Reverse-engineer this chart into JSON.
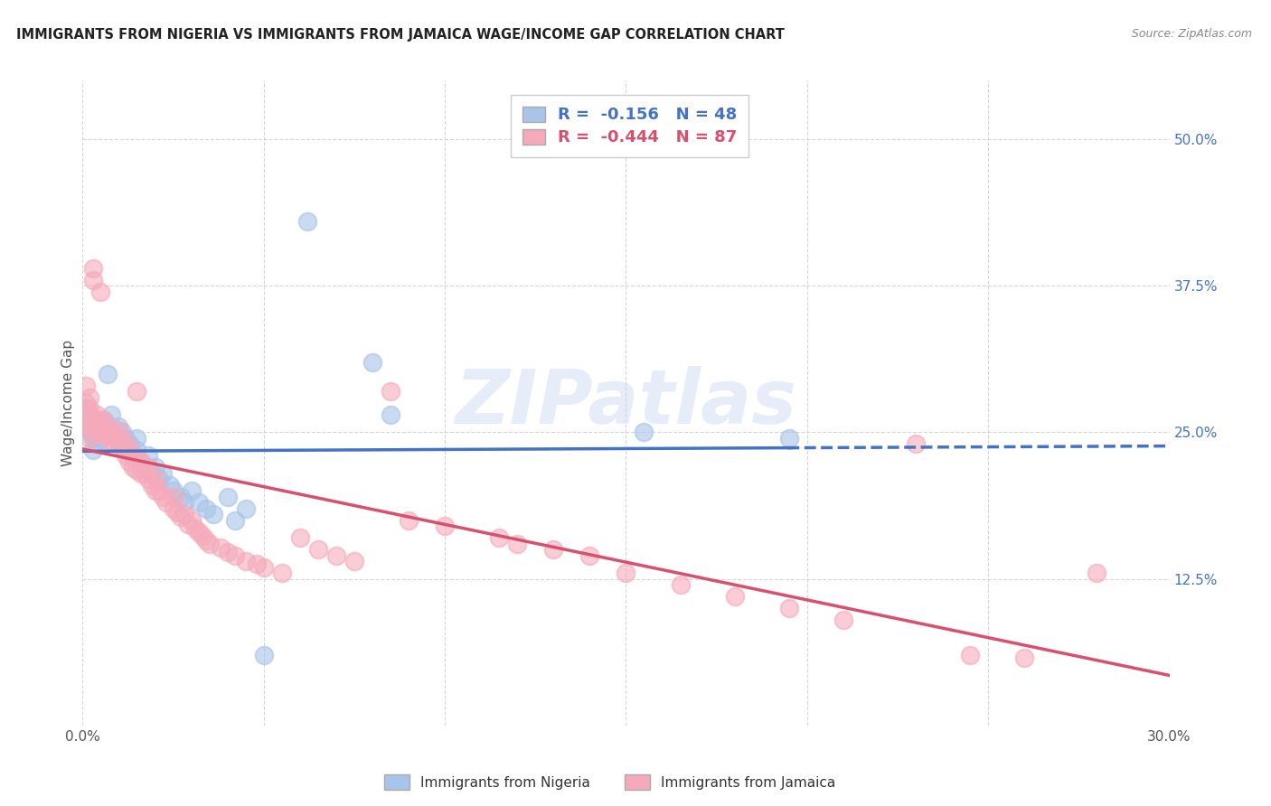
{
  "title": "IMMIGRANTS FROM NIGERIA VS IMMIGRANTS FROM JAMAICA WAGE/INCOME GAP CORRELATION CHART",
  "source": "Source: ZipAtlas.com",
  "ylabel": "Wage/Income Gap",
  "yticks": [
    "50.0%",
    "37.5%",
    "25.0%",
    "12.5%"
  ],
  "ytick_vals": [
    0.5,
    0.375,
    0.25,
    0.125
  ],
  "xmin": 0.0,
  "xmax": 0.3,
  "ymin": 0.0,
  "ymax": 0.55,
  "nigeria_R": -0.156,
  "nigeria_N": 48,
  "jamaica_R": -0.444,
  "jamaica_N": 87,
  "nigeria_color": "#a8c4e8",
  "jamaica_color": "#f5aabb",
  "nigeria_line_color": "#4472c4",
  "jamaica_line_color": "#d94f6e",
  "nigeria_scatter": [
    [
      0.001,
      0.27
    ],
    [
      0.001,
      0.255
    ],
    [
      0.002,
      0.265
    ],
    [
      0.002,
      0.25
    ],
    [
      0.003,
      0.26
    ],
    [
      0.003,
      0.245
    ],
    [
      0.003,
      0.235
    ],
    [
      0.004,
      0.25
    ],
    [
      0.004,
      0.24
    ],
    [
      0.005,
      0.255
    ],
    [
      0.005,
      0.245
    ],
    [
      0.006,
      0.26
    ],
    [
      0.006,
      0.25
    ],
    [
      0.007,
      0.3
    ],
    [
      0.008,
      0.265
    ],
    [
      0.008,
      0.25
    ],
    [
      0.01,
      0.255
    ],
    [
      0.01,
      0.24
    ],
    [
      0.011,
      0.25
    ],
    [
      0.012,
      0.245
    ],
    [
      0.012,
      0.235
    ],
    [
      0.013,
      0.24
    ],
    [
      0.014,
      0.23
    ],
    [
      0.015,
      0.245
    ],
    [
      0.015,
      0.235
    ],
    [
      0.016,
      0.225
    ],
    [
      0.018,
      0.23
    ],
    [
      0.019,
      0.215
    ],
    [
      0.02,
      0.22
    ],
    [
      0.021,
      0.21
    ],
    [
      0.022,
      0.215
    ],
    [
      0.024,
      0.205
    ],
    [
      0.025,
      0.2
    ],
    [
      0.027,
      0.195
    ],
    [
      0.028,
      0.19
    ],
    [
      0.03,
      0.2
    ],
    [
      0.032,
      0.19
    ],
    [
      0.034,
      0.185
    ],
    [
      0.036,
      0.18
    ],
    [
      0.04,
      0.195
    ],
    [
      0.042,
      0.175
    ],
    [
      0.045,
      0.185
    ],
    [
      0.05,
      0.06
    ],
    [
      0.062,
      0.43
    ],
    [
      0.08,
      0.31
    ],
    [
      0.085,
      0.265
    ],
    [
      0.155,
      0.25
    ],
    [
      0.195,
      0.245
    ]
  ],
  "jamaica_scatter": [
    [
      0.001,
      0.29
    ],
    [
      0.001,
      0.275
    ],
    [
      0.001,
      0.265
    ],
    [
      0.001,
      0.255
    ],
    [
      0.002,
      0.28
    ],
    [
      0.002,
      0.27
    ],
    [
      0.002,
      0.255
    ],
    [
      0.002,
      0.245
    ],
    [
      0.003,
      0.39
    ],
    [
      0.003,
      0.38
    ],
    [
      0.003,
      0.26
    ],
    [
      0.003,
      0.25
    ],
    [
      0.004,
      0.265
    ],
    [
      0.004,
      0.255
    ],
    [
      0.005,
      0.37
    ],
    [
      0.005,
      0.26
    ],
    [
      0.005,
      0.248
    ],
    [
      0.006,
      0.26
    ],
    [
      0.006,
      0.25
    ],
    [
      0.007,
      0.255
    ],
    [
      0.007,
      0.248
    ],
    [
      0.008,
      0.25
    ],
    [
      0.008,
      0.242
    ],
    [
      0.009,
      0.24
    ],
    [
      0.01,
      0.252
    ],
    [
      0.01,
      0.242
    ],
    [
      0.011,
      0.245
    ],
    [
      0.011,
      0.237
    ],
    [
      0.012,
      0.24
    ],
    [
      0.012,
      0.23
    ],
    [
      0.013,
      0.235
    ],
    [
      0.013,
      0.225
    ],
    [
      0.014,
      0.232
    ],
    [
      0.014,
      0.22
    ],
    [
      0.015,
      0.285
    ],
    [
      0.015,
      0.228
    ],
    [
      0.015,
      0.218
    ],
    [
      0.016,
      0.225
    ],
    [
      0.016,
      0.215
    ],
    [
      0.017,
      0.215
    ],
    [
      0.018,
      0.22
    ],
    [
      0.018,
      0.21
    ],
    [
      0.019,
      0.205
    ],
    [
      0.02,
      0.21
    ],
    [
      0.02,
      0.2
    ],
    [
      0.021,
      0.2
    ],
    [
      0.022,
      0.195
    ],
    [
      0.023,
      0.19
    ],
    [
      0.025,
      0.195
    ],
    [
      0.025,
      0.185
    ],
    [
      0.026,
      0.182
    ],
    [
      0.027,
      0.178
    ],
    [
      0.028,
      0.18
    ],
    [
      0.029,
      0.172
    ],
    [
      0.03,
      0.175
    ],
    [
      0.031,
      0.168
    ],
    [
      0.032,
      0.165
    ],
    [
      0.033,
      0.162
    ],
    [
      0.034,
      0.158
    ],
    [
      0.035,
      0.155
    ],
    [
      0.038,
      0.152
    ],
    [
      0.04,
      0.148
    ],
    [
      0.042,
      0.145
    ],
    [
      0.045,
      0.14
    ],
    [
      0.048,
      0.138
    ],
    [
      0.05,
      0.135
    ],
    [
      0.055,
      0.13
    ],
    [
      0.06,
      0.16
    ],
    [
      0.065,
      0.15
    ],
    [
      0.07,
      0.145
    ],
    [
      0.075,
      0.14
    ],
    [
      0.085,
      0.285
    ],
    [
      0.09,
      0.175
    ],
    [
      0.1,
      0.17
    ],
    [
      0.115,
      0.16
    ],
    [
      0.12,
      0.155
    ],
    [
      0.13,
      0.15
    ],
    [
      0.14,
      0.145
    ],
    [
      0.15,
      0.13
    ],
    [
      0.165,
      0.12
    ],
    [
      0.18,
      0.11
    ],
    [
      0.195,
      0.1
    ],
    [
      0.21,
      0.09
    ],
    [
      0.23,
      0.24
    ],
    [
      0.245,
      0.06
    ],
    [
      0.26,
      0.058
    ],
    [
      0.28,
      0.13
    ]
  ],
  "watermark_text": "ZIPatlas",
  "background_color": "#ffffff",
  "grid_color": "#cccccc"
}
